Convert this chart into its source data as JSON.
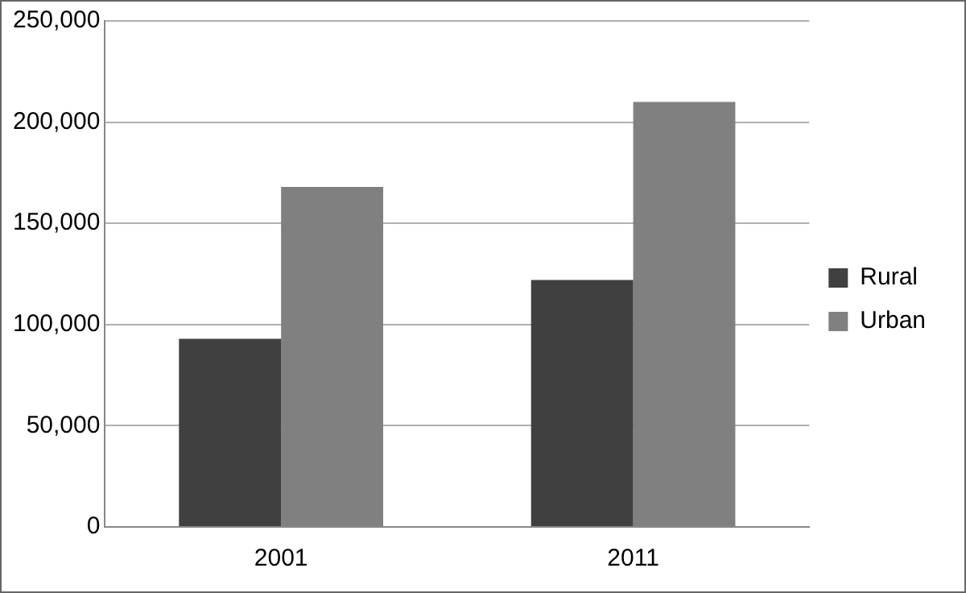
{
  "chart_data": {
    "type": "bar",
    "categories": [
      "2001",
      "2011"
    ],
    "series": [
      {
        "name": "Rural",
        "color": "#404040",
        "values": [
          93000,
          122000
        ]
      },
      {
        "name": "Urban",
        "color": "#808080",
        "values": [
          168000,
          210000
        ]
      }
    ],
    "ylim": [
      0,
      250000
    ],
    "yticks": [
      {
        "value": 0,
        "label": "0"
      },
      {
        "value": 50000,
        "label": "50,000"
      },
      {
        "value": 100000,
        "label": "100,000"
      },
      {
        "value": 150000,
        "label": "150,000"
      },
      {
        "value": 200000,
        "label": "200,000"
      },
      {
        "value": 250000,
        "label": "250,000"
      }
    ],
    "grid": "y",
    "legend": "right"
  }
}
